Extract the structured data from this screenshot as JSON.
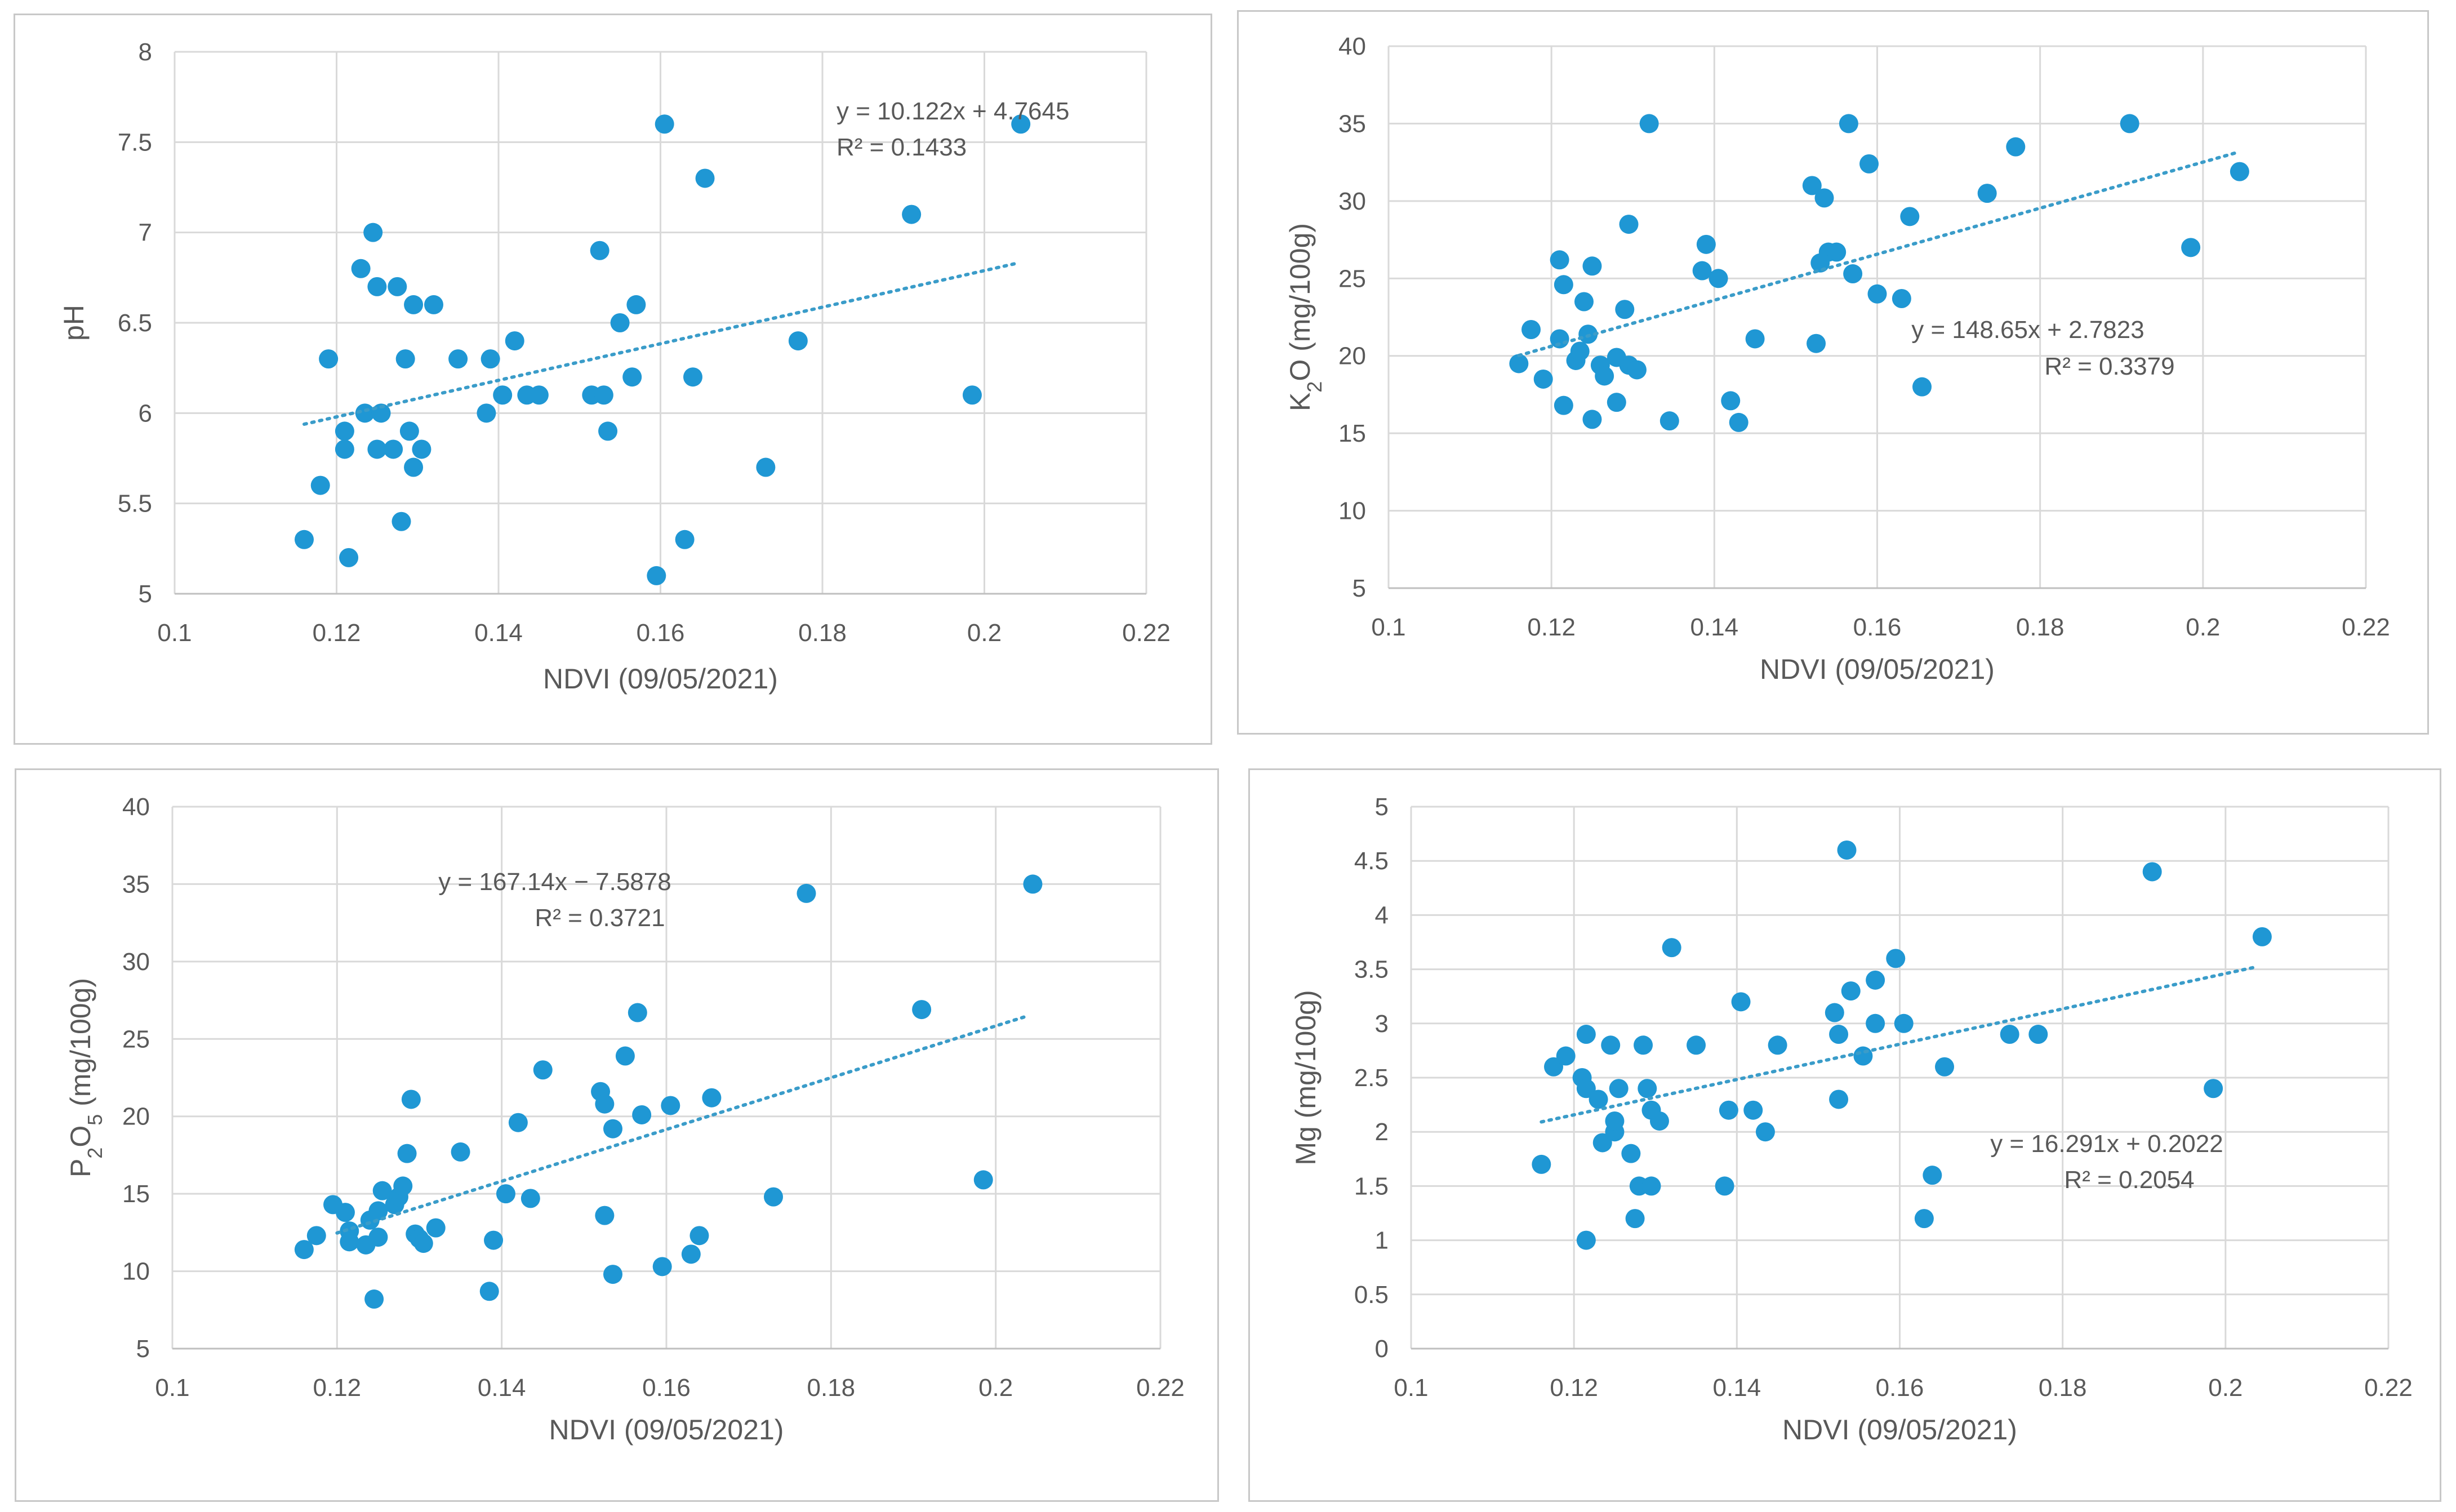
{
  "colors": {
    "point": "#1f97d4",
    "trendline": "#3a9cc9"
  },
  "chart_data": [
    {
      "type": "scatter",
      "xlabel": "NDVI (09/05/2021)",
      "ylabel": "pH",
      "xlim": [
        0.1,
        0.22
      ],
      "ylim": [
        5,
        8
      ],
      "xticks": [
        "0.1",
        "0.12",
        "0.14",
        "0.16",
        "0.18",
        "0.2",
        "0.22"
      ],
      "yticks": [
        "5",
        "5.5",
        "6",
        "6.5",
        "7",
        "7.5",
        "8"
      ],
      "grid": true,
      "trendline": {
        "slope": 10.122,
        "intercept": 4.7645,
        "x_range": [
          0.116,
          0.204
        ]
      },
      "annotation": {
        "equation": "y = 10.122x + 4.7645",
        "r2": "R² = 0.1433"
      },
      "points": [
        [
          0.116,
          5.3
        ],
        [
          0.118,
          5.6
        ],
        [
          0.119,
          6.3
        ],
        [
          0.121,
          5.9
        ],
        [
          0.121,
          5.8
        ],
        [
          0.1215,
          5.2
        ],
        [
          0.123,
          6.8
        ],
        [
          0.1235,
          6.0
        ],
        [
          0.1245,
          7.0
        ],
        [
          0.125,
          5.8
        ],
        [
          0.125,
          6.7
        ],
        [
          0.1255,
          6.0
        ],
        [
          0.127,
          5.8
        ],
        [
          0.1275,
          6.7
        ],
        [
          0.128,
          5.4
        ],
        [
          0.1285,
          6.3
        ],
        [
          0.129,
          5.9
        ],
        [
          0.1295,
          5.7
        ],
        [
          0.1295,
          6.6
        ],
        [
          0.1305,
          5.8
        ],
        [
          0.132,
          6.6
        ],
        [
          0.135,
          6.3
        ],
        [
          0.1385,
          6.0
        ],
        [
          0.139,
          6.3
        ],
        [
          0.1405,
          6.1
        ],
        [
          0.142,
          6.4
        ],
        [
          0.1435,
          6.1
        ],
        [
          0.145,
          6.1
        ],
        [
          0.1515,
          6.1
        ],
        [
          0.1525,
          6.9
        ],
        [
          0.153,
          6.1
        ],
        [
          0.1535,
          5.9
        ],
        [
          0.155,
          6.5
        ],
        [
          0.1565,
          6.2
        ],
        [
          0.157,
          6.6
        ],
        [
          0.1595,
          5.1
        ],
        [
          0.1605,
          7.6
        ],
        [
          0.163,
          5.3
        ],
        [
          0.164,
          6.2
        ],
        [
          0.1655,
          7.3
        ],
        [
          0.173,
          5.7
        ],
        [
          0.177,
          6.4
        ],
        [
          0.191,
          7.1
        ],
        [
          0.1985,
          6.1
        ],
        [
          0.2045,
          7.6
        ]
      ]
    },
    {
      "type": "scatter",
      "xlabel": "NDVI (09/05/2021)",
      "ylabel": "K2O (mg/100g)",
      "xlim": [
        0.1,
        0.22
      ],
      "ylim": [
        5,
        40
      ],
      "xticks": [
        "0.1",
        "0.12",
        "0.14",
        "0.16",
        "0.18",
        "0.2",
        "0.22"
      ],
      "yticks": [
        "5",
        "10",
        "15",
        "20",
        "25",
        "30",
        "35",
        "40"
      ],
      "grid": true,
      "trendline": {
        "slope": 148.65,
        "intercept": 2.7823,
        "x_range": [
          0.116,
          0.204
        ]
      },
      "annotation": {
        "equation": "y = 148.65x + 2.7823",
        "r2": "R² = 0.3379"
      },
      "points": [
        [
          0.116,
          19.5
        ],
        [
          0.1175,
          21.7
        ],
        [
          0.119,
          18.5
        ],
        [
          0.121,
          26.2
        ],
        [
          0.121,
          21.1
        ],
        [
          0.1215,
          24.6
        ],
        [
          0.1215,
          16.8
        ],
        [
          0.123,
          19.7
        ],
        [
          0.1235,
          20.3
        ],
        [
          0.124,
          23.5
        ],
        [
          0.1245,
          21.4
        ],
        [
          0.125,
          25.8
        ],
        [
          0.125,
          15.9
        ],
        [
          0.126,
          19.4
        ],
        [
          0.1265,
          18.7
        ],
        [
          0.128,
          19.9
        ],
        [
          0.128,
          17.0
        ],
        [
          0.129,
          23.0
        ],
        [
          0.1295,
          28.5
        ],
        [
          0.1295,
          19.4
        ],
        [
          0.1305,
          19.1
        ],
        [
          0.132,
          35.0
        ],
        [
          0.1345,
          15.8
        ],
        [
          0.1385,
          25.5
        ],
        [
          0.139,
          27.2
        ],
        [
          0.1405,
          25.0
        ],
        [
          0.142,
          17.1
        ],
        [
          0.143,
          15.7
        ],
        [
          0.145,
          21.1
        ],
        [
          0.152,
          31.0
        ],
        [
          0.1525,
          20.8
        ],
        [
          0.153,
          26.0
        ],
        [
          0.1535,
          30.2
        ],
        [
          0.154,
          26.7
        ],
        [
          0.155,
          26.7
        ],
        [
          0.1565,
          35.0
        ],
        [
          0.157,
          25.3
        ],
        [
          0.159,
          32.4
        ],
        [
          0.16,
          24.0
        ],
        [
          0.163,
          23.7
        ],
        [
          0.164,
          29.0
        ],
        [
          0.1655,
          18.0
        ],
        [
          0.1735,
          30.5
        ],
        [
          0.177,
          33.5
        ],
        [
          0.191,
          35.0
        ],
        [
          0.1985,
          27.0
        ],
        [
          0.2045,
          31.9
        ]
      ]
    },
    {
      "type": "scatter",
      "xlabel": "NDVI (09/05/2021)",
      "ylabel": "P2O5 (mg/100g)",
      "xlim": [
        0.1,
        0.22
      ],
      "ylim": [
        5,
        40
      ],
      "xticks": [
        "0.1",
        "0.12",
        "0.14",
        "0.16",
        "0.18",
        "0.2",
        "0.22"
      ],
      "yticks": [
        "5",
        "10",
        "15",
        "20",
        "25",
        "30",
        "35",
        "40"
      ],
      "grid": true,
      "trendline": {
        "slope": 167.14,
        "intercept": -7.5878,
        "x_range": [
          0.12,
          0.204
        ]
      },
      "annotation": {
        "equation": "y = 167.14x − 7.5878",
        "r2": "R² = 0.3721"
      },
      "points": [
        [
          0.116,
          11.4
        ],
        [
          0.1175,
          12.3
        ],
        [
          0.1195,
          14.3
        ],
        [
          0.121,
          13.8
        ],
        [
          0.1215,
          12.6
        ],
        [
          0.1215,
          11.9
        ],
        [
          0.1235,
          11.7
        ],
        [
          0.124,
          13.3
        ],
        [
          0.1245,
          8.2
        ],
        [
          0.125,
          12.2
        ],
        [
          0.1255,
          15.2
        ],
        [
          0.125,
          13.9
        ],
        [
          0.127,
          14.3
        ],
        [
          0.1275,
          14.8
        ],
        [
          0.128,
          15.5
        ],
        [
          0.1285,
          17.6
        ],
        [
          0.129,
          21.1
        ],
        [
          0.1295,
          12.4
        ],
        [
          0.13,
          12.1
        ],
        [
          0.1305,
          11.8
        ],
        [
          0.132,
          12.8
        ],
        [
          0.135,
          17.7
        ],
        [
          0.1385,
          8.7
        ],
        [
          0.139,
          12.0
        ],
        [
          0.1405,
          15.0
        ],
        [
          0.142,
          19.6
        ],
        [
          0.1435,
          14.7
        ],
        [
          0.145,
          23.0
        ],
        [
          0.152,
          21.6
        ],
        [
          0.1525,
          20.8
        ],
        [
          0.1525,
          13.6
        ],
        [
          0.1535,
          9.8
        ],
        [
          0.1535,
          19.2
        ],
        [
          0.155,
          23.9
        ],
        [
          0.1565,
          26.7
        ],
        [
          0.157,
          20.1
        ],
        [
          0.1595,
          10.3
        ],
        [
          0.1605,
          20.7
        ],
        [
          0.163,
          11.1
        ],
        [
          0.164,
          12.3
        ],
        [
          0.1655,
          21.2
        ],
        [
          0.173,
          14.8
        ],
        [
          0.177,
          34.4
        ],
        [
          0.191,
          26.9
        ],
        [
          0.1985,
          15.9
        ],
        [
          0.2045,
          35.0
        ]
      ]
    },
    {
      "type": "scatter",
      "xlabel": "NDVI (09/05/2021)",
      "ylabel": "Mg (mg/100g)",
      "xlim": [
        0.1,
        0.22
      ],
      "ylim": [
        0,
        5
      ],
      "xticks": [
        "0.1",
        "0.12",
        "0.14",
        "0.16",
        "0.18",
        "0.2",
        "0.22"
      ],
      "yticks": [
        "0",
        "0.5",
        "1",
        "1.5",
        "2",
        "2.5",
        "3",
        "3.5",
        "4",
        "4.5",
        "5"
      ],
      "grid": true,
      "trendline": {
        "slope": 16.291,
        "intercept": 0.2022,
        "x_range": [
          0.116,
          0.204
        ]
      },
      "annotation": {
        "equation": "y = 16.291x + 0.2022",
        "r2": "R² = 0.2054"
      },
      "points": [
        [
          0.116,
          1.7
        ],
        [
          0.1175,
          2.6
        ],
        [
          0.119,
          2.7
        ],
        [
          0.121,
          2.5
        ],
        [
          0.1215,
          2.4
        ],
        [
          0.1215,
          2.9
        ],
        [
          0.1215,
          1.0
        ],
        [
          0.123,
          2.3
        ],
        [
          0.1235,
          1.9
        ],
        [
          0.1245,
          2.8
        ],
        [
          0.125,
          2.0
        ],
        [
          0.125,
          2.1
        ],
        [
          0.1255,
          2.4
        ],
        [
          0.127,
          1.8
        ],
        [
          0.1275,
          1.2
        ],
        [
          0.128,
          1.5
        ],
        [
          0.1285,
          2.8
        ],
        [
          0.129,
          2.4
        ],
        [
          0.1295,
          2.2
        ],
        [
          0.1295,
          1.5
        ],
        [
          0.1305,
          2.1
        ],
        [
          0.132,
          3.7
        ],
        [
          0.135,
          2.8
        ],
        [
          0.1385,
          1.5
        ],
        [
          0.139,
          2.2
        ],
        [
          0.1405,
          3.2
        ],
        [
          0.142,
          2.2
        ],
        [
          0.1435,
          2.0
        ],
        [
          0.145,
          2.8
        ],
        [
          0.152,
          3.1
        ],
        [
          0.1525,
          2.9
        ],
        [
          0.1525,
          2.3
        ],
        [
          0.1535,
          4.6
        ],
        [
          0.154,
          3.3
        ],
        [
          0.1555,
          2.7
        ],
        [
          0.157,
          3.4
        ],
        [
          0.157,
          3.0
        ],
        [
          0.1595,
          3.6
        ],
        [
          0.1605,
          3.0
        ],
        [
          0.163,
          1.2
        ],
        [
          0.164,
          1.6
        ],
        [
          0.1655,
          2.6
        ],
        [
          0.1735,
          2.9
        ],
        [
          0.177,
          2.9
        ],
        [
          0.191,
          4.4
        ],
        [
          0.1985,
          2.4
        ],
        [
          0.2045,
          3.8
        ]
      ]
    }
  ]
}
